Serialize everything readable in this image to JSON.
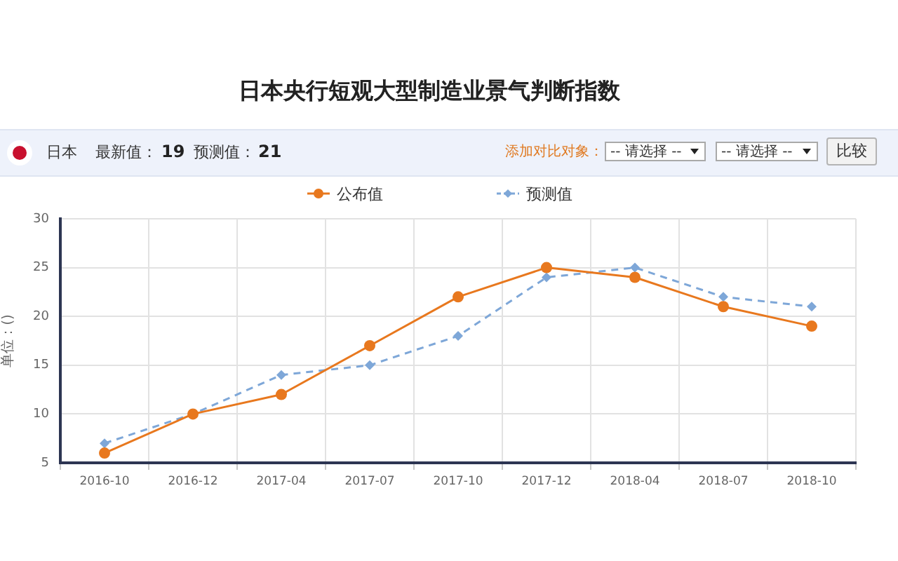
{
  "chart_data": {
    "type": "line",
    "title": "日本央行短观大型制造业景气判断指数",
    "ylabel": "单位：()",
    "categories": [
      "2016-10",
      "2016-12",
      "2017-04",
      "2017-07",
      "2017-10",
      "2017-12",
      "2018-04",
      "2018-07",
      "2018-10"
    ],
    "series": [
      {
        "name": "公布值",
        "color": "#e8781e",
        "marker": "circle",
        "line_style": "solid",
        "values": [
          6,
          10,
          12,
          17,
          22,
          25,
          24,
          21,
          19
        ]
      },
      {
        "name": "预测值",
        "color": "#7ea7d8",
        "marker": "diamond",
        "line_style": "dashed",
        "values": [
          7,
          10,
          14,
          15,
          18,
          24,
          25,
          22,
          21
        ]
      }
    ],
    "ylim": [
      5,
      30
    ],
    "yticks": [
      5,
      10,
      15,
      20,
      25,
      30
    ],
    "grid": true,
    "legend": "top",
    "annotations": [
      "日本",
      "最新值：",
      "19",
      "预测值：",
      "21",
      "添加对比对象：",
      "-- 请选择 --",
      "-- 请选择 --",
      "比较"
    ]
  }
}
